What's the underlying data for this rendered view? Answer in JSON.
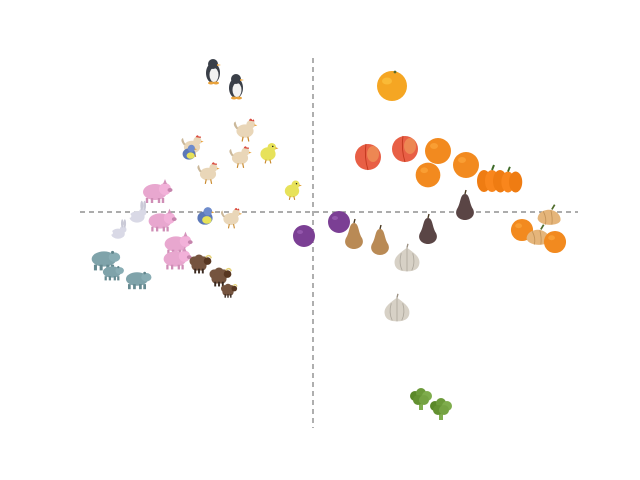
{
  "scene": {
    "background": "#ffffff",
    "axis_color": "#7a7a7a",
    "axis_style": "dashed"
  },
  "clusters": [
    {
      "name": "animals",
      "region": "left"
    },
    {
      "name": "fruits-and-vegetables",
      "region": "right"
    }
  ],
  "icons": {
    "penguin": "penguin-icon",
    "chicken": "chicken-icon",
    "chick": "chick-icon",
    "bird": "bird-icon",
    "pig": "pig-icon",
    "rabbit": "rabbit-icon",
    "hippo": "hippo-icon",
    "sheep": "sheep-icon",
    "plum": "plum-icon",
    "pear": "pear-icon",
    "garlic": "garlic-icon",
    "peach": "peach-icon",
    "orange": "orange-icon",
    "pumpkin": "pumpkin-icon",
    "squash": "squash-icon",
    "broccoli": "broccoli-icon"
  },
  "colors": {
    "penguin": "#3a3f48",
    "chicken": "#e9d6b8",
    "chick": "#e7e25a",
    "bird": "#5b78b8",
    "pig": "#e8a7cf",
    "rabbit": "#d9d9e6",
    "hippo": "#7fa3aa",
    "sheep": "#6b4a35",
    "plum": "#7b3f94",
    "pear": "#b98a55",
    "garlic": "#d7d1c6",
    "peach": "#e85f45",
    "orange": "#f28a1f",
    "pumpkin": "#ef7c12",
    "squash": "#e5b57a",
    "broccoli": "#6c9a3a"
  }
}
